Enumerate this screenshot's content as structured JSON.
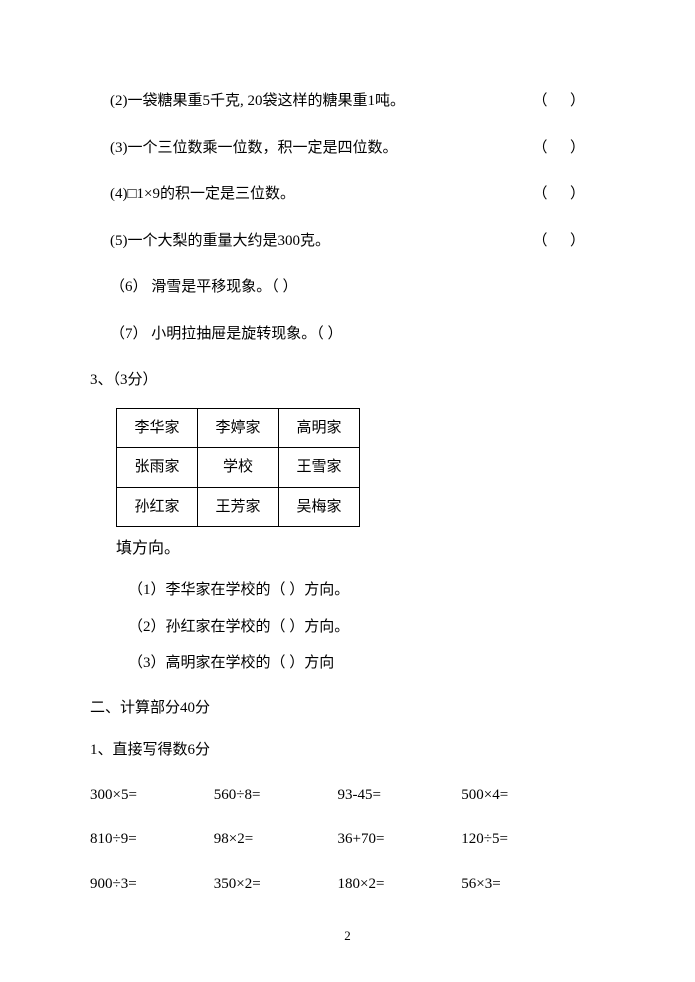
{
  "tf_items": [
    {
      "num": "(2)",
      "text": "一袋糖果重5千克, 20袋这样的糖果重1吨。",
      "paren": "（      ）"
    },
    {
      "num": "(3)",
      "text": "一个三位数乘一位数，积一定是四位数。",
      "paren": "（      ）"
    },
    {
      "num": "(4)",
      "text": "□1×9的积一定是三位数。",
      "paren": "（      ）"
    },
    {
      "num": "(5)",
      "text": "一个大梨的重量大约是300克。",
      "paren": "（      ）"
    }
  ],
  "inline_items": [
    {
      "num": "（6）",
      "text": "滑雪是平移现象。（      ）"
    },
    {
      "num": "（7）",
      "text": "小明拉抽屉是旋转现象。（      ）"
    }
  ],
  "q3_head": "3、（3分）",
  "grid": {
    "rows": [
      [
        "李华家",
        "李婷家",
        "高明家"
      ],
      [
        "张雨家",
        "学校",
        "王雪家"
      ],
      [
        "孙红家",
        "王芳家",
        "吴梅家"
      ]
    ]
  },
  "dir_head": "填方向。",
  "dir_items": [
    "（1）李华家在学校的（    ）方向。",
    "（2）孙红家在学校的（    ）方向。",
    "（3）高明家在学校的（    ）方向"
  ],
  "part2_head": "二、计算部分40分",
  "calc_head": "1、直接写得数6分",
  "calc_rows": [
    [
      "300×5=",
      "560÷8=",
      "93-45=",
      "500×4="
    ],
    [
      "810÷9=",
      "98×2=",
      "36+70=",
      "120÷5="
    ],
    [
      "900÷3=",
      "350×2=",
      "180×2=",
      "56×3="
    ]
  ],
  "page_number": "2"
}
